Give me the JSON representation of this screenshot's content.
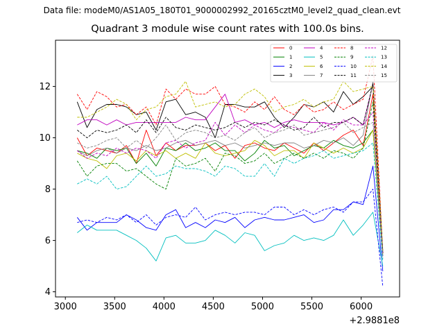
{
  "figure": {
    "suptitle": "Data file: modeM0/AS1A05_180T01_9000002992_20165cztM0_level2_quad_clean.evt",
    "title": "Quadrant 3 module wise count rates with 100.0s bins."
  },
  "chart_data": {
    "type": "line",
    "title": "Quadrant 3 module wise count rates with 100.0s bins.",
    "xlabel": "",
    "ylabel": "",
    "x_offset_label": "+2.9881e8",
    "xlim": [
      2900,
      6390
    ],
    "ylim": [
      3.8,
      13.8
    ],
    "xticks": [
      3000,
      3500,
      4000,
      4500,
      5000,
      5500,
      6000
    ],
    "xtick_labels": [
      "3000",
      "3500",
      "4000",
      "4500",
      "5000",
      "5500",
      "6000"
    ],
    "yticks": [
      4,
      6,
      8,
      10,
      12
    ],
    "ytick_labels": [
      "4",
      "6",
      "8",
      "10",
      "12"
    ],
    "grid": false,
    "legend_position": "upper-right",
    "x": [
      3120,
      3220,
      3320,
      3420,
      3520,
      3620,
      3720,
      3820,
      3920,
      4020,
      4120,
      4220,
      4320,
      4420,
      4520,
      4620,
      4720,
      4820,
      4920,
      5020,
      5120,
      5220,
      5320,
      5420,
      5520,
      5620,
      5720,
      5820,
      5920,
      6020,
      6120,
      6220
    ],
    "series": [
      {
        "name": "0",
        "color": "#ff0000",
        "dash": "solid",
        "values": [
          10.0,
          9.3,
          9.6,
          9.5,
          9.4,
          9.7,
          9.0,
          10.3,
          9.3,
          9.8,
          9.5,
          9.7,
          9.7,
          9.8,
          9.5,
          9.7,
          9.2,
          9.7,
          9.8,
          9.6,
          9.5,
          9.8,
          9.6,
          9.4,
          9.8,
          9.5,
          9.8,
          10.1,
          10.3,
          9.7,
          11.7,
          5.5
        ]
      },
      {
        "name": "1",
        "color": "#008000",
        "dash": "solid",
        "values": [
          9.5,
          9.4,
          9.2,
          9.6,
          9.5,
          9.6,
          9.0,
          9.4,
          8.9,
          9.6,
          9.5,
          9.8,
          9.5,
          9.6,
          9.8,
          9.5,
          9.5,
          9.1,
          9.4,
          9.9,
          9.6,
          9.7,
          9.3,
          9.5,
          9.7,
          9.6,
          9.9,
          9.7,
          9.6,
          9.8,
          10.3,
          5.4
        ]
      },
      {
        "name": "2",
        "color": "#0000ff",
        "dash": "solid",
        "values": [
          6.9,
          6.4,
          6.7,
          6.7,
          6.7,
          7.0,
          6.8,
          6.5,
          6.4,
          7.0,
          7.2,
          6.5,
          6.7,
          6.5,
          6.8,
          6.7,
          6.9,
          6.5,
          6.8,
          6.9,
          6.8,
          6.8,
          6.9,
          7.0,
          6.7,
          6.8,
          7.2,
          7.2,
          7.5,
          7.4,
          8.9,
          4.8
        ]
      },
      {
        "name": "3",
        "color": "#000000",
        "dash": "solid",
        "values": [
          11.4,
          10.4,
          11.1,
          11.3,
          11.3,
          11.2,
          10.9,
          11.0,
          10.3,
          11.4,
          11.5,
          10.9,
          11.0,
          10.8,
          10.0,
          11.3,
          11.3,
          11.2,
          11.2,
          11.4,
          10.8,
          10.4,
          10.8,
          11.3,
          11.2,
          11.4,
          11.0,
          11.8,
          11.3,
          11.6,
          12.0,
          5.6
        ]
      },
      {
        "name": "4",
        "color": "#bf00bf",
        "dash": "solid",
        "values": [
          10.5,
          10.7,
          10.7,
          10.5,
          10.7,
          10.5,
          10.6,
          10.6,
          10.6,
          10.6,
          10.6,
          10.8,
          10.7,
          10.7,
          11.2,
          11.7,
          10.6,
          10.7,
          10.5,
          10.6,
          10.4,
          10.6,
          10.7,
          10.6,
          10.6,
          10.6,
          10.5,
          10.6,
          10.8,
          10.5,
          12.1,
          5.5
        ]
      },
      {
        "name": "5",
        "color": "#00bfbf",
        "dash": "solid",
        "values": [
          6.3,
          6.6,
          6.4,
          6.4,
          6.4,
          6.2,
          6.0,
          5.7,
          5.2,
          6.1,
          6.2,
          5.9,
          5.9,
          6.0,
          6.4,
          6.2,
          5.9,
          6.3,
          6.2,
          5.6,
          5.8,
          5.9,
          6.2,
          6.0,
          6.1,
          6.0,
          6.2,
          6.8,
          6.2,
          6.6,
          7.1,
          5.0
        ]
      },
      {
        "name": "6",
        "color": "#bfbf00",
        "dash": "solid",
        "values": [
          9.4,
          9.2,
          9.1,
          8.8,
          9.3,
          9.4,
          9.1,
          9.5,
          9.3,
          9.5,
          9.2,
          9.4,
          9.2,
          9.8,
          9.4,
          9.3,
          9.4,
          9.5,
          9.9,
          9.7,
          9.3,
          9.5,
          9.5,
          9.2,
          9.8,
          9.6,
          9.4,
          9.6,
          9.4,
          9.6,
          10.3,
          5.5
        ]
      },
      {
        "name": "7",
        "color": "#808080",
        "dash": "solid",
        "values": [
          9.5,
          9.3,
          9.5,
          9.6,
          9.4,
          9.6,
          9.5,
          9.7,
          9.5,
          9.6,
          9.8,
          9.9,
          9.7,
          9.8,
          9.9,
          9.7,
          9.8,
          9.6,
          9.7,
          9.8,
          9.7,
          9.8,
          9.8,
          9.6,
          9.7,
          9.9,
          9.8,
          10.0,
          9.7,
          10.1,
          12.2,
          5.5
        ]
      },
      {
        "name": "8",
        "color": "#ff0000",
        "dash": "dash",
        "values": [
          11.7,
          11.1,
          11.8,
          11.6,
          11.2,
          11.3,
          10.9,
          11.2,
          10.5,
          11.9,
          11.5,
          11.9,
          11.7,
          11.7,
          12.0,
          11.3,
          11.2,
          11.0,
          11.4,
          11.1,
          11.6,
          11.1,
          10.9,
          11.3,
          11.0,
          11.1,
          11.4,
          11.1,
          11.3,
          11.5,
          13.2,
          5.5
        ]
      },
      {
        "name": "9",
        "color": "#008000",
        "dash": "dash",
        "values": [
          9.1,
          8.5,
          8.9,
          9.0,
          9.0,
          8.7,
          8.8,
          8.5,
          8.2,
          8.0,
          9.2,
          8.9,
          9.0,
          9.2,
          8.7,
          9.4,
          9.3,
          9.0,
          9.1,
          9.4,
          9.0,
          9.2,
          9.4,
          9.2,
          9.4,
          9.2,
          9.5,
          9.4,
          9.2,
          9.6,
          11.4,
          5.3
        ]
      },
      {
        "name": "10",
        "color": "#0000ff",
        "dash": "dash",
        "values": [
          6.7,
          6.8,
          6.7,
          6.9,
          6.8,
          7.0,
          6.7,
          7.0,
          6.6,
          6.9,
          7.0,
          6.9,
          7.3,
          6.8,
          7.0,
          7.1,
          7.0,
          7.1,
          7.1,
          7.0,
          7.3,
          7.3,
          7.0,
          7.2,
          7.0,
          7.2,
          7.3,
          7.1,
          7.5,
          7.5,
          8.0,
          4.2
        ]
      },
      {
        "name": "11",
        "color": "#000000",
        "dash": "dash",
        "values": [
          10.3,
          10.0,
          10.3,
          10.2,
          10.3,
          10.5,
          10.2,
          10.7,
          10.2,
          10.8,
          10.4,
          10.3,
          10.5,
          10.4,
          10.3,
          10.4,
          10.6,
          10.4,
          10.6,
          10.5,
          10.7,
          10.5,
          10.3,
          10.4,
          10.8,
          10.4,
          10.6,
          10.6,
          10.8,
          10.5,
          12.1,
          5.5
        ]
      },
      {
        "name": "12",
        "color": "#bf00bf",
        "dash": "dash",
        "values": [
          9.5,
          9.2,
          9.4,
          9.3,
          9.6,
          9.4,
          9.6,
          9.5,
          9.2,
          9.8,
          9.9,
          9.6,
          9.8,
          9.9,
          10.6,
          10.1,
          10.5,
          10.2,
          10.5,
          10.3,
          10.2,
          10.5,
          10.4,
          10.3,
          10.2,
          10.6,
          10.3,
          10.7,
          10.5,
          10.5,
          11.0,
          5.4
        ]
      },
      {
        "name": "13",
        "color": "#00bfbf",
        "dash": "dash",
        "values": [
          8.2,
          8.4,
          8.2,
          8.5,
          8.0,
          8.1,
          8.5,
          8.9,
          8.5,
          8.6,
          8.9,
          8.8,
          8.8,
          8.7,
          8.5,
          8.9,
          8.8,
          8.5,
          8.5,
          9.0,
          8.5,
          9.2,
          9.0,
          9.2,
          9.3,
          9.5,
          9.2,
          9.3,
          9.4,
          9.5,
          9.8,
          5.2
        ]
      },
      {
        "name": "14",
        "color": "#bfbf00",
        "dash": "dash",
        "values": [
          10.8,
          10.8,
          11.0,
          11.2,
          11.5,
          11.3,
          10.7,
          11.1,
          11.2,
          11.6,
          11.7,
          12.2,
          11.2,
          11.3,
          11.4,
          11.2,
          11.3,
          11.7,
          11.9,
          11.6,
          11.0,
          11.2,
          11.3,
          11.5,
          11.2,
          11.4,
          11.5,
          12.2,
          11.8,
          11.9,
          12.0,
          5.6
        ]
      },
      {
        "name": "15",
        "color": "#808080",
        "dash": "dash",
        "values": [
          9.8,
          9.6,
          9.7,
          9.9,
          10.0,
          9.6,
          9.9,
          9.6,
          10.0,
          10.5,
          9.9,
          10.2,
          10.3,
          10.2,
          10.0,
          10.1,
          9.9,
          10.2,
          10.4,
          10.0,
          10.2,
          10.3,
          10.5,
          10.1,
          10.2,
          10.3,
          10.4,
          10.6,
          10.2,
          10.4,
          10.6,
          5.5
        ]
      }
    ]
  }
}
